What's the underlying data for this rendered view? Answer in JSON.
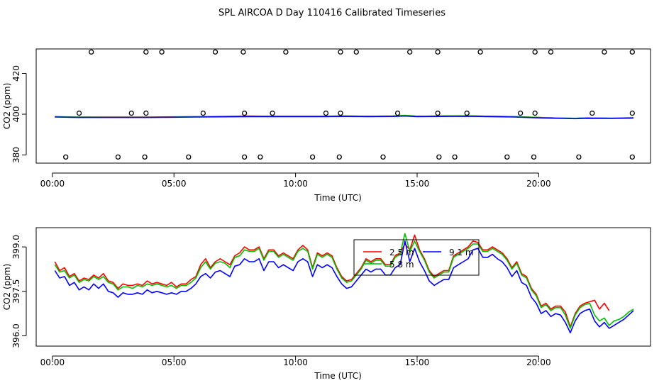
{
  "title": "SPL AIRCOA D  Day 110416  Calibrated Timeseries",
  "chart_data": [
    {
      "type": "scatter",
      "name": "panel-top",
      "xlabel": "Time (UTC)",
      "ylabel": "CO2 (ppm)",
      "xlim": [
        -0.667,
        24.6
      ],
      "ylim": [
        376,
        432
      ],
      "xticks": [
        0,
        5,
        10,
        15,
        20
      ],
      "xtick_labels": [
        "00:00",
        "05:00",
        "10:00",
        "15:00",
        "20:00"
      ],
      "yticks": [
        380,
        400,
        420
      ],
      "ytick_labels": [
        "380",
        "400",
        "420"
      ],
      "points_x": [
        1.6,
        3.85,
        4.5,
        6.7,
        7.85,
        9.6,
        11.85,
        12.5,
        14.7,
        15.85,
        17.6,
        19.85,
        20.5,
        22.7,
        23.85,
        1.1,
        3.25,
        3.85,
        6.2,
        7.9,
        9.05,
        11.25,
        11.85,
        14.2,
        15.85,
        17.05,
        19.25,
        19.85,
        22.2,
        23.85,
        0.55,
        2.7,
        3.8,
        5.6,
        7.9,
        8.55,
        10.7,
        11.8,
        13.6,
        15.9,
        16.55,
        18.7,
        19.8,
        21.65,
        23.85
      ],
      "points_y": [
        430.5,
        430.5,
        430.5,
        430.5,
        430.5,
        430.5,
        430.5,
        430.5,
        430.5,
        430.5,
        430.5,
        430.5,
        430.5,
        430.5,
        430.5,
        400.5,
        400.5,
        400.5,
        400.5,
        400.5,
        400.5,
        400.5,
        400.5,
        400.5,
        400.5,
        400.5,
        400.5,
        400.5,
        400.5,
        400.5,
        379,
        379,
        379,
        379,
        379,
        379,
        379,
        379,
        379,
        379,
        379,
        379,
        379,
        379,
        379
      ],
      "series": [
        {
          "name": "2.5 m",
          "color": "#ff0000",
          "x": [
            0.1,
            1,
            2,
            3,
            4,
            5,
            6,
            7,
            8,
            9,
            10,
            11,
            12,
            13,
            14,
            14.5,
            15,
            16,
            17,
            18,
            19,
            20,
            21,
            21.5,
            22,
            23,
            23.9
          ],
          "values": [
            398.8,
            398.6,
            398.6,
            398.6,
            398.6,
            398.7,
            398.8,
            398.9,
            399.1,
            399.0,
            399.0,
            399.0,
            399.1,
            399.0,
            399.1,
            399.4,
            399.0,
            399.1,
            399.2,
            399.0,
            398.8,
            398.4,
            398.1,
            398.0,
            398.2,
            398.0,
            398.2
          ]
        },
        {
          "name": "5.8 m",
          "color": "#00c000",
          "x": [
            0.1,
            1,
            2,
            3,
            4,
            5,
            6,
            7,
            8,
            9,
            10,
            11,
            12,
            13,
            14,
            14.5,
            15,
            16,
            17,
            18,
            19,
            20,
            21,
            21.5,
            22,
            23,
            23.9
          ],
          "values": [
            398.7,
            398.6,
            398.5,
            398.5,
            398.5,
            398.6,
            398.8,
            398.9,
            399.0,
            399.0,
            399.0,
            399.0,
            399.1,
            399.0,
            399.1,
            399.4,
            399.0,
            399.1,
            399.2,
            399.0,
            398.8,
            398.4,
            398.1,
            398.0,
            398.2,
            398.1,
            398.3
          ]
        },
        {
          "name": "9.1 m",
          "color": "#0000ff",
          "x": [
            0.1,
            1,
            2,
            3,
            4,
            5,
            6,
            7,
            8,
            9,
            10,
            11,
            12,
            13,
            14,
            14.5,
            15,
            16,
            17,
            18,
            19,
            20,
            21,
            21.5,
            22,
            23,
            23.9
          ],
          "values": [
            398.6,
            398.4,
            398.4,
            398.4,
            398.4,
            398.5,
            398.6,
            398.7,
            398.8,
            398.8,
            398.8,
            398.8,
            398.9,
            398.8,
            398.9,
            399.1,
            398.8,
            398.9,
            399.0,
            398.8,
            398.6,
            398.2,
            397.9,
            397.8,
            398.0,
            397.9,
            398.1
          ]
        }
      ]
    },
    {
      "type": "line",
      "name": "panel-bottom",
      "xlabel": "Time (UTC)",
      "ylabel": "CO2 (ppm)",
      "xlim": [
        -0.667,
        24.6
      ],
      "ylim": [
        395.65,
        399.65
      ],
      "xticks": [
        0,
        5,
        10,
        15,
        20
      ],
      "xtick_labels": [
        "00:00",
        "05:00",
        "10:00",
        "15:00",
        "20:00"
      ],
      "yticks": [
        396.0,
        397.5,
        399.0
      ],
      "ytick_labels": [
        "396.0",
        "397.5",
        "399.0"
      ],
      "legend": {
        "position": "top-center",
        "entries": [
          "2.5 m",
          "5.8 m",
          "9.1 m"
        ]
      },
      "series": [
        {
          "name": "2.5 m",
          "color": "#ff0000",
          "x": [
            0.1,
            0.3,
            0.5,
            0.7,
            0.9,
            1.1,
            1.3,
            1.5,
            1.7,
            1.9,
            2.1,
            2.3,
            2.5,
            2.7,
            2.9,
            3.1,
            3.3,
            3.5,
            3.7,
            3.9,
            4.1,
            4.3,
            4.5,
            4.7,
            4.9,
            5.1,
            5.3,
            5.5,
            5.7,
            5.9,
            6.1,
            6.3,
            6.5,
            6.7,
            6.9,
            7.1,
            7.3,
            7.5,
            7.7,
            7.9,
            8.1,
            8.3,
            8.5,
            8.7,
            8.9,
            9.1,
            9.3,
            9.5,
            9.7,
            9.9,
            10.1,
            10.3,
            10.5,
            10.7,
            10.9,
            11.1,
            11.3,
            11.5,
            11.7,
            11.9,
            12.1,
            12.3,
            12.5,
            12.7,
            12.9,
            13.1,
            13.3,
            13.5,
            13.7,
            13.9,
            14.1,
            14.3,
            14.5,
            14.7,
            14.9,
            15.1,
            15.3,
            15.5,
            15.7,
            15.9,
            16.1,
            16.3,
            16.5,
            16.7,
            16.9,
            17.1,
            17.3,
            17.5,
            17.7,
            17.9,
            18.1,
            18.3,
            18.5,
            18.7,
            18.9,
            19.1,
            19.3,
            19.5,
            19.7,
            19.9,
            20.1,
            20.3,
            20.5,
            20.7,
            20.9,
            21.1,
            21.3,
            21.5,
            21.7,
            21.9,
            22.1,
            22.3,
            22.5,
            22.7,
            22.9
          ],
          "values": [
            398.5,
            398.2,
            398.3,
            398.0,
            398.1,
            397.85,
            397.95,
            397.9,
            398.05,
            397.95,
            398.1,
            397.85,
            397.8,
            397.6,
            397.75,
            397.7,
            397.7,
            397.75,
            397.7,
            397.85,
            397.75,
            397.8,
            397.75,
            397.7,
            397.8,
            397.65,
            397.75,
            397.75,
            397.9,
            398.0,
            398.4,
            398.6,
            398.3,
            398.5,
            398.6,
            398.5,
            398.4,
            398.7,
            398.8,
            399.0,
            398.9,
            398.9,
            399.0,
            398.6,
            398.9,
            398.9,
            398.7,
            398.8,
            398.7,
            398.6,
            398.9,
            399.05,
            398.9,
            398.3,
            398.8,
            398.7,
            398.8,
            398.7,
            398.3,
            398.0,
            397.85,
            397.9,
            398.1,
            398.3,
            398.6,
            398.5,
            398.6,
            398.6,
            398.4,
            398.4,
            398.7,
            398.8,
            399.1,
            398.9,
            399.4,
            398.9,
            398.6,
            398.2,
            398.0,
            398.1,
            398.2,
            398.2,
            398.7,
            398.8,
            398.9,
            399.0,
            399.2,
            399.15,
            398.9,
            398.9,
            399.0,
            398.9,
            398.8,
            398.6,
            398.3,
            398.5,
            398.1,
            398.0,
            397.6,
            397.4,
            397.0,
            397.1,
            396.9,
            397.0,
            397.0,
            396.8,
            396.3,
            396.75,
            397.0,
            397.1,
            397.15,
            397.2,
            396.9,
            397.1,
            396.85
          ]
        },
        {
          "name": "5.8 m",
          "color": "#00c000",
          "x": [
            0.1,
            0.3,
            0.5,
            0.7,
            0.9,
            1.1,
            1.3,
            1.5,
            1.7,
            1.9,
            2.1,
            2.3,
            2.5,
            2.7,
            2.9,
            3.1,
            3.3,
            3.5,
            3.7,
            3.9,
            4.1,
            4.3,
            4.5,
            4.7,
            4.9,
            5.1,
            5.3,
            5.5,
            5.7,
            5.9,
            6.1,
            6.3,
            6.5,
            6.7,
            6.9,
            7.1,
            7.3,
            7.5,
            7.7,
            7.9,
            8.1,
            8.3,
            8.5,
            8.7,
            8.9,
            9.1,
            9.3,
            9.5,
            9.7,
            9.9,
            10.1,
            10.3,
            10.5,
            10.7,
            10.9,
            11.1,
            11.3,
            11.5,
            11.7,
            11.9,
            12.1,
            12.3,
            12.5,
            12.7,
            12.9,
            13.1,
            13.3,
            13.5,
            13.7,
            13.9,
            14.1,
            14.3,
            14.5,
            14.7,
            14.9,
            15.1,
            15.3,
            15.5,
            15.7,
            15.9,
            16.1,
            16.3,
            16.5,
            16.7,
            16.9,
            17.1,
            17.3,
            17.5,
            17.7,
            17.9,
            18.1,
            18.3,
            18.5,
            18.7,
            18.9,
            19.1,
            19.3,
            19.5,
            19.7,
            19.9,
            20.1,
            20.3,
            20.5,
            20.7,
            20.9,
            21.1,
            21.3,
            21.5,
            21.7,
            21.9,
            22.1,
            22.3,
            22.5,
            22.7,
            22.9,
            23.1,
            23.3,
            23.5,
            23.7,
            23.9
          ],
          "values": [
            398.4,
            398.15,
            398.2,
            397.95,
            398.05,
            397.8,
            397.9,
            397.85,
            398.0,
            397.9,
            398.0,
            397.8,
            397.75,
            397.55,
            397.65,
            397.65,
            397.6,
            397.7,
            397.65,
            397.75,
            397.7,
            397.75,
            397.7,
            397.65,
            397.7,
            397.6,
            397.7,
            397.7,
            397.8,
            397.95,
            398.3,
            398.5,
            398.25,
            398.45,
            398.5,
            398.45,
            398.3,
            398.65,
            398.7,
            398.9,
            398.85,
            398.85,
            398.95,
            398.55,
            398.85,
            398.85,
            398.65,
            398.75,
            398.65,
            398.55,
            398.85,
            398.95,
            398.85,
            398.25,
            398.75,
            398.65,
            398.75,
            398.65,
            398.25,
            397.95,
            397.8,
            397.85,
            398.05,
            398.25,
            398.55,
            398.45,
            398.55,
            398.55,
            398.35,
            398.35,
            398.65,
            398.75,
            399.45,
            398.85,
            399.2,
            398.85,
            398.55,
            398.15,
            397.95,
            398.05,
            398.15,
            398.15,
            398.65,
            398.75,
            398.85,
            398.95,
            399.1,
            399.1,
            398.85,
            398.85,
            398.95,
            398.85,
            398.75,
            398.55,
            398.25,
            398.45,
            398.05,
            397.95,
            397.55,
            397.35,
            396.95,
            397.05,
            396.85,
            396.95,
            396.95,
            396.7,
            396.25,
            396.7,
            396.95,
            397.05,
            397.1,
            396.7,
            396.5,
            396.6,
            396.35,
            396.5,
            396.55,
            396.65,
            396.8,
            396.9
          ]
        },
        {
          "name": "9.1 m",
          "color": "#0000ff",
          "x": [
            0.1,
            0.3,
            0.5,
            0.7,
            0.9,
            1.1,
            1.3,
            1.5,
            1.7,
            1.9,
            2.1,
            2.3,
            2.5,
            2.7,
            2.9,
            3.1,
            3.3,
            3.5,
            3.7,
            3.9,
            4.1,
            4.3,
            4.5,
            4.7,
            4.9,
            5.1,
            5.3,
            5.5,
            5.7,
            5.9,
            6.1,
            6.3,
            6.5,
            6.7,
            6.9,
            7.1,
            7.3,
            7.5,
            7.7,
            7.9,
            8.1,
            8.3,
            8.5,
            8.7,
            8.9,
            9.1,
            9.3,
            9.5,
            9.7,
            9.9,
            10.1,
            10.3,
            10.5,
            10.7,
            10.9,
            11.1,
            11.3,
            11.5,
            11.7,
            11.9,
            12.1,
            12.3,
            12.5,
            12.7,
            12.9,
            13.1,
            13.3,
            13.5,
            13.7,
            13.9,
            14.1,
            14.3,
            14.5,
            14.7,
            14.9,
            15.1,
            15.3,
            15.5,
            15.7,
            15.9,
            16.1,
            16.3,
            16.5,
            16.7,
            16.9,
            17.1,
            17.3,
            17.5,
            17.7,
            17.9,
            18.1,
            18.3,
            18.5,
            18.7,
            18.9,
            19.1,
            19.3,
            19.5,
            19.7,
            19.9,
            20.1,
            20.3,
            20.5,
            20.7,
            20.9,
            21.1,
            21.3,
            21.5,
            21.7,
            21.9,
            22.1,
            22.3,
            22.5,
            22.7,
            22.9,
            23.1,
            23.3,
            23.5,
            23.7,
            23.9
          ],
          "values": [
            398.2,
            397.95,
            398.0,
            397.7,
            397.8,
            397.55,
            397.65,
            397.55,
            397.75,
            397.6,
            397.75,
            397.5,
            397.45,
            397.3,
            397.45,
            397.4,
            397.4,
            397.45,
            397.4,
            397.55,
            397.45,
            397.5,
            397.45,
            397.4,
            397.45,
            397.4,
            397.5,
            397.5,
            397.6,
            397.75,
            398.0,
            398.1,
            397.95,
            398.15,
            398.2,
            398.1,
            398.0,
            398.35,
            398.4,
            398.6,
            398.5,
            398.5,
            398.6,
            398.2,
            398.5,
            398.5,
            398.3,
            398.4,
            398.3,
            398.2,
            398.5,
            398.6,
            398.5,
            398.0,
            398.4,
            398.3,
            398.4,
            398.3,
            398.0,
            397.75,
            397.6,
            397.65,
            397.85,
            398.05,
            398.25,
            398.15,
            398.25,
            398.25,
            398.05,
            398.05,
            398.3,
            398.4,
            399.2,
            398.5,
            398.95,
            398.5,
            398.2,
            397.85,
            397.7,
            397.8,
            397.9,
            397.9,
            398.3,
            398.4,
            398.5,
            398.6,
            398.9,
            398.95,
            398.65,
            398.65,
            398.75,
            398.6,
            398.5,
            398.3,
            398.0,
            398.2,
            397.8,
            397.7,
            397.3,
            397.1,
            396.75,
            396.85,
            396.65,
            396.75,
            396.7,
            396.45,
            396.1,
            396.5,
            396.75,
            396.85,
            396.9,
            396.5,
            396.3,
            396.45,
            396.25,
            396.35,
            396.45,
            396.55,
            396.7,
            396.85
          ]
        }
      ]
    }
  ]
}
